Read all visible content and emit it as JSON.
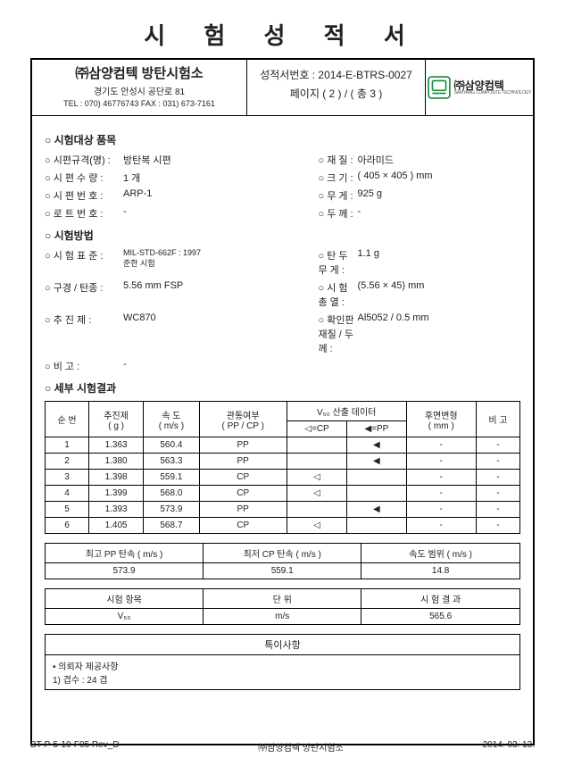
{
  "title": "시 험 성 적 서",
  "hdr": {
    "org": "㈜삼양컴텍 방탄시험소",
    "addr": "경기도 안성시 공단로 81",
    "tel": "TEL : 070) 46776743   FAX : 031) 673-7161",
    "reportNo": "성적서번호 : 2014-E-BTRS-0027",
    "page": "페이지 ( 2 ) / ( 총 3 )",
    "brand": "㈜삼양컴텍",
    "brandEn": "SAMYANG COMPOSITE TECHNOLOGY"
  },
  "sec1": {
    "title": "○ 시험대상 품목",
    "rows": [
      {
        "l": "시편규격(명) :",
        "lv": "방탄복 시편",
        "r": "재           질 :",
        "rv": "아라미드"
      },
      {
        "l": "시 편 수 량 :",
        "lv": "1 개",
        "r": "크           기 :",
        "rv": "( 405 × 405 ) mm"
      },
      {
        "l": "시 편 번 호 :",
        "lv": "ARP-1",
        "r": "무           게 :",
        "rv": "925 g"
      },
      {
        "l": "로 트 번 호 :",
        "lv": "-",
        "r": "두           께 :",
        "rv": "-"
      }
    ]
  },
  "sec2": {
    "title": "○ 시험방법",
    "rows": [
      {
        "l": "시 험 표 준 :",
        "lv": "MIL-STD-662F : 1997\n준한 시험",
        "r": "탄  두  무  게 :",
        "rv": "1.1 g"
      },
      {
        "l": "구경 / 탄종 :",
        "lv": "5.56 mm FSP",
        "r": "시  험  총  열 :",
        "rv": "(5.56 × 45) mm"
      },
      {
        "l": "추  진  제 :",
        "lv": "WC870",
        "r": "확인판 재질 / 두께 :",
        "rv": "Al5052 / 0.5 mm"
      },
      {
        "l": "비        고 :",
        "lv": "-",
        "r": "",
        "rv": ""
      }
    ]
  },
  "sec3": {
    "title": "○ 세부 시험결과"
  },
  "tableHdr": {
    "c1": "순 번",
    "c2": "추진제\n( g )",
    "c3": "속 도\n( m/s )",
    "c4": "관통여부\n( PP / CP )",
    "c5": "V₅₀ 산출 데이터",
    "c5a": "◁=CP",
    "c5b": "◀=PP",
    "c6": "후면변형\n( mm )",
    "c7": "비 고"
  },
  "tableRows": [
    {
      "n": "1",
      "prop": "1.363",
      "vel": "560.4",
      "pen": "PP",
      "cp": "",
      "pp": "◀",
      "def": "-",
      "note": "-"
    },
    {
      "n": "2",
      "prop": "1.380",
      "vel": "563.3",
      "pen": "PP",
      "cp": "",
      "pp": "◀",
      "def": "-",
      "note": "-"
    },
    {
      "n": "3",
      "prop": "1.398",
      "vel": "559.1",
      "pen": "CP",
      "cp": "◁",
      "pp": "",
      "def": "-",
      "note": "-"
    },
    {
      "n": "4",
      "prop": "1.399",
      "vel": "568.0",
      "pen": "CP",
      "cp": "◁",
      "pp": "",
      "def": "-",
      "note": "-"
    },
    {
      "n": "5",
      "prop": "1.393",
      "vel": "573.9",
      "pen": "PP",
      "cp": "",
      "pp": "◀",
      "def": "-",
      "note": "-"
    },
    {
      "n": "6",
      "prop": "1.405",
      "vel": "568.7",
      "pen": "CP",
      "cp": "◁",
      "pp": "",
      "def": "-",
      "note": "-"
    }
  ],
  "summary": {
    "h1": "최고 PP 탄속 ( m/s )",
    "v1": "573.9",
    "h2": "최저 CP 탄속 ( m/s )",
    "v2": "559.1",
    "h3": "속도 범위 ( m/s )",
    "v3": "14.8"
  },
  "result": {
    "h1": "시험 항목",
    "h2": "단 위",
    "h3": "시 험 결 과",
    "r1": "V₅₀",
    "r2": "m/s",
    "r3": "565.6"
  },
  "notes": {
    "title": "특이사항",
    "body": "• 의뢰자 제공사항\n1) 겹수 : 24 겹"
  },
  "footer": {
    "l": "BT-P-5-10-F05 Rev_D",
    "c": "㈜삼양컴텍 방탄시험소",
    "r": "2014. 03. 13."
  }
}
